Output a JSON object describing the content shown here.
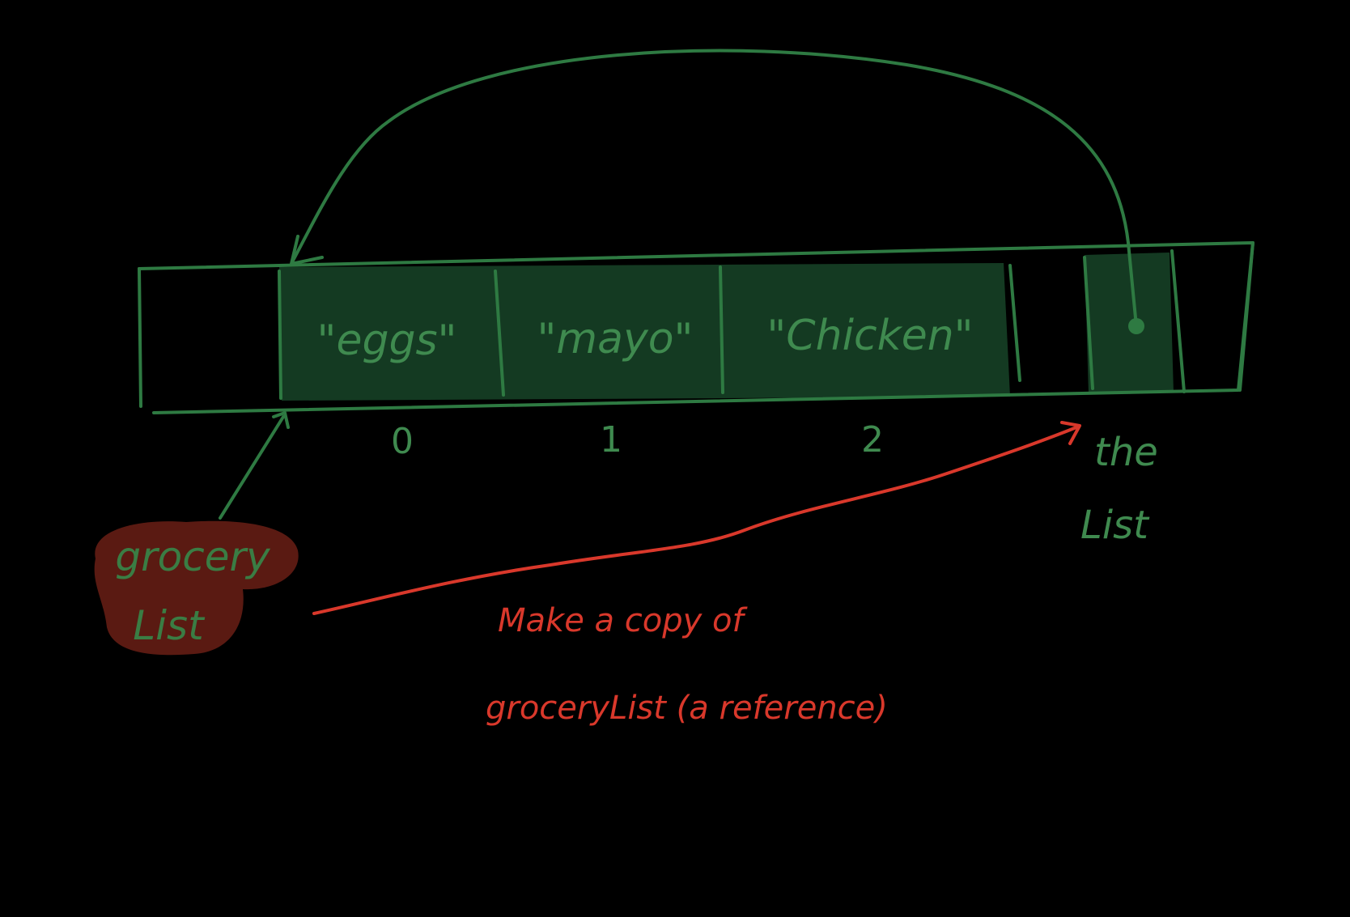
{
  "colors": {
    "background": "#000000",
    "stroke_green": "#2e7a42",
    "cell_fill": "#143a22",
    "text_green": "#3f8a4f",
    "variable_badge": "#5a1a12",
    "arrow_red": "#d9382b"
  },
  "array": {
    "cells": [
      {
        "value": "\"eggs\"",
        "index": "0"
      },
      {
        "value": "\"mayo\"",
        "index": "1"
      },
      {
        "value": "\"Chicken\"",
        "index": "2"
      }
    ]
  },
  "variables": {
    "grocery_list": {
      "line1": "grocery",
      "line2": "List"
    },
    "the_list": {
      "line1": "the",
      "line2": "List"
    }
  },
  "note": {
    "line1": "Make a copy of",
    "line2": "groceryList (a reference)"
  }
}
